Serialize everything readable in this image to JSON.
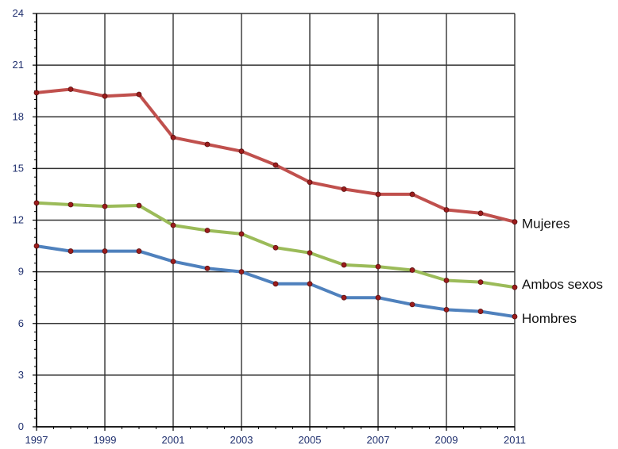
{
  "chart_data": {
    "type": "line",
    "title": "",
    "xlabel": "",
    "ylabel": "",
    "x": [
      1997,
      1998,
      1999,
      2000,
      2001,
      2002,
      2003,
      2004,
      2005,
      2006,
      2007,
      2008,
      2009,
      2010,
      2011
    ],
    "x_ticks": [
      "1997",
      "1999",
      "2001",
      "2003",
      "2005",
      "2007",
      "2009",
      "2011"
    ],
    "y_ticks": [
      "0",
      "3",
      "6",
      "9",
      "12",
      "15",
      "18",
      "21",
      "24"
    ],
    "xlim": [
      1997,
      2011
    ],
    "ylim": [
      0,
      24
    ],
    "grid": true,
    "legend": "direct labels at line ends",
    "series": [
      {
        "name": "Mujeres",
        "color": "#c0504d",
        "values": [
          19.4,
          19.6,
          19.2,
          19.3,
          16.8,
          16.4,
          16.0,
          15.2,
          14.2,
          13.8,
          13.5,
          13.5,
          12.6,
          12.4,
          11.9
        ]
      },
      {
        "name": "Ambos sexos",
        "color": "#9bbb59",
        "values": [
          13.0,
          12.9,
          12.8,
          12.85,
          11.7,
          11.4,
          11.2,
          10.4,
          10.1,
          9.4,
          9.3,
          9.1,
          8.5,
          8.4,
          8.1
        ]
      },
      {
        "name": "Hombres",
        "color": "#4f81bd",
        "values": [
          10.5,
          10.2,
          10.2,
          10.2,
          9.6,
          9.2,
          9.0,
          8.3,
          8.3,
          7.5,
          7.5,
          7.1,
          6.8,
          6.7,
          6.4
        ]
      }
    ],
    "marker_color": "#9c1c1c",
    "axis_color": "#000000",
    "grid_color": "#333333"
  }
}
